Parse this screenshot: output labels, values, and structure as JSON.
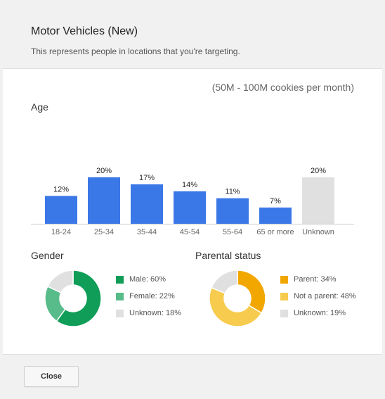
{
  "dialog": {
    "title": "Motor Vehicles (New)",
    "subtitle": "This represents people in locations that you're targeting.",
    "reach": "(50M - 100M cookies per month)",
    "close_label": "Close"
  },
  "sections": {
    "age_title": "Age",
    "gender_title": "Gender",
    "parental_title": "Parental status"
  },
  "colors": {
    "bar_blue": "#3B78E7",
    "bar_unknown": "#E0E0E0",
    "male": "#0F9D58",
    "female": "#57BB8A",
    "unknown": "#E0E0E0",
    "parent": "#F2A600",
    "not_parent": "#F7CB4D"
  },
  "chart_data": [
    {
      "type": "bar",
      "title": "Age",
      "categories": [
        "18-24",
        "25-34",
        "35-44",
        "45-54",
        "55-64",
        "65 or more",
        "Unknown"
      ],
      "values": [
        12,
        20,
        17,
        14,
        11,
        7,
        20
      ],
      "labels": [
        "12%",
        "20%",
        "17%",
        "14%",
        "11%",
        "7%",
        "20%"
      ],
      "ylim": [
        0,
        20
      ],
      "grid": false
    },
    {
      "type": "pie",
      "title": "Gender",
      "categories": [
        "Male",
        "Female",
        "Unknown"
      ],
      "values": [
        60,
        22,
        18
      ],
      "legend": [
        "Male: 60%",
        "Female: 22%",
        "Unknown: 18%"
      ],
      "legend_position": "right"
    },
    {
      "type": "pie",
      "title": "Parental status",
      "categories": [
        "Parent",
        "Not a parent",
        "Unknown"
      ],
      "values": [
        34,
        48,
        19
      ],
      "legend": [
        "Parent: 34%",
        "Not a parent: 48%",
        "Unknown: 19%"
      ],
      "legend_position": "right"
    }
  ]
}
